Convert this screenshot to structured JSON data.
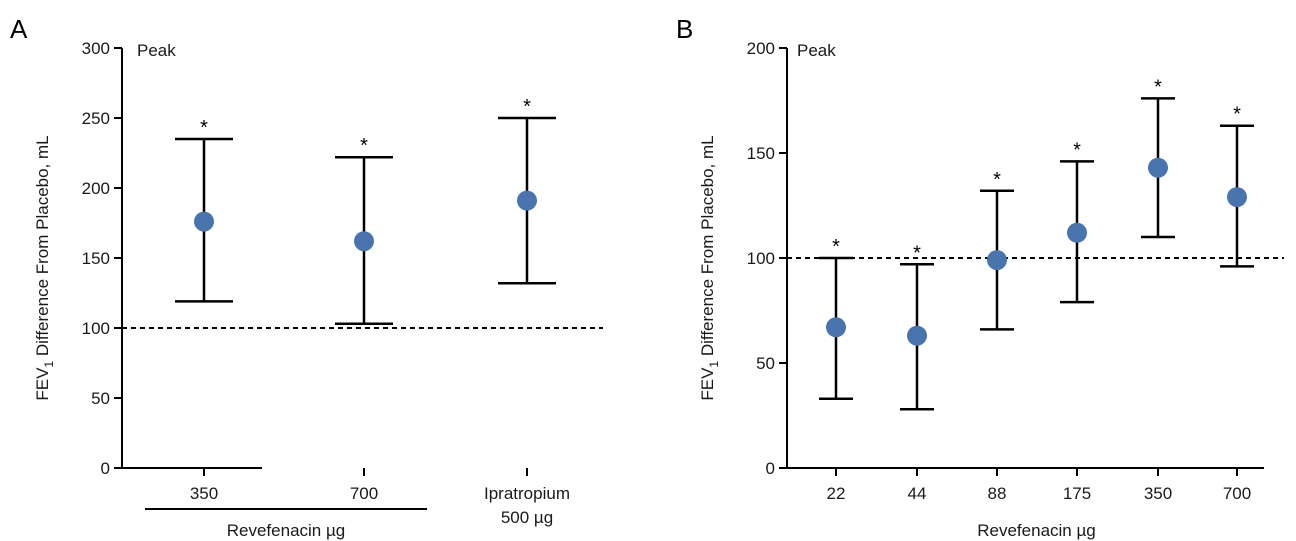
{
  "chart_data": [
    {
      "panel_letter": "A",
      "type": "scatter",
      "annotation": "Peak",
      "ylabel_prefix": "FEV",
      "ylabel_sub": "1",
      "ylabel_suffix": " Difference From Placebo, mL",
      "ylim": [
        0,
        300
      ],
      "yticks": [
        0,
        50,
        100,
        150,
        200,
        250,
        300
      ],
      "reference_line": 100,
      "categories": [
        "350",
        "700",
        "Ipratropium|500 µg"
      ],
      "group_label": "Revefenacin µg",
      "points": [
        {
          "category": "350",
          "y": 176,
          "lower": 119,
          "upper": 235,
          "marker": "*"
        },
        {
          "category": "700",
          "y": 162,
          "lower": 103,
          "upper": 222,
          "marker": "*"
        },
        {
          "category": "Ipratropium 500 µg",
          "y": 191,
          "lower": 132,
          "upper": 250,
          "marker": "*"
        }
      ],
      "color": "#4a74ad"
    },
    {
      "panel_letter": "B",
      "type": "scatter",
      "annotation": "Peak",
      "ylabel_prefix": "FEV",
      "ylabel_sub": "1",
      "ylabel_suffix": " Difference From Placebo, mL",
      "ylim": [
        0,
        200
      ],
      "yticks": [
        0,
        50,
        100,
        150,
        200
      ],
      "reference_line": 100,
      "categories": [
        "22",
        "44",
        "88",
        "175",
        "350",
        "700"
      ],
      "xlabel": "Revefenacin µg",
      "points": [
        {
          "category": "22",
          "y": 67,
          "lower": 33,
          "upper": 100,
          "marker": "*"
        },
        {
          "category": "44",
          "y": 63,
          "lower": 28,
          "upper": 97,
          "marker": "*"
        },
        {
          "category": "88",
          "y": 99,
          "lower": 66,
          "upper": 132,
          "marker": "*"
        },
        {
          "category": "175",
          "y": 112,
          "lower": 79,
          "upper": 146,
          "marker": "*"
        },
        {
          "category": "350",
          "y": 143,
          "lower": 110,
          "upper": 176,
          "marker": "*"
        },
        {
          "category": "700",
          "y": 129,
          "lower": 96,
          "upper": 163,
          "marker": "*"
        }
      ],
      "color": "#4a74ad"
    }
  ]
}
